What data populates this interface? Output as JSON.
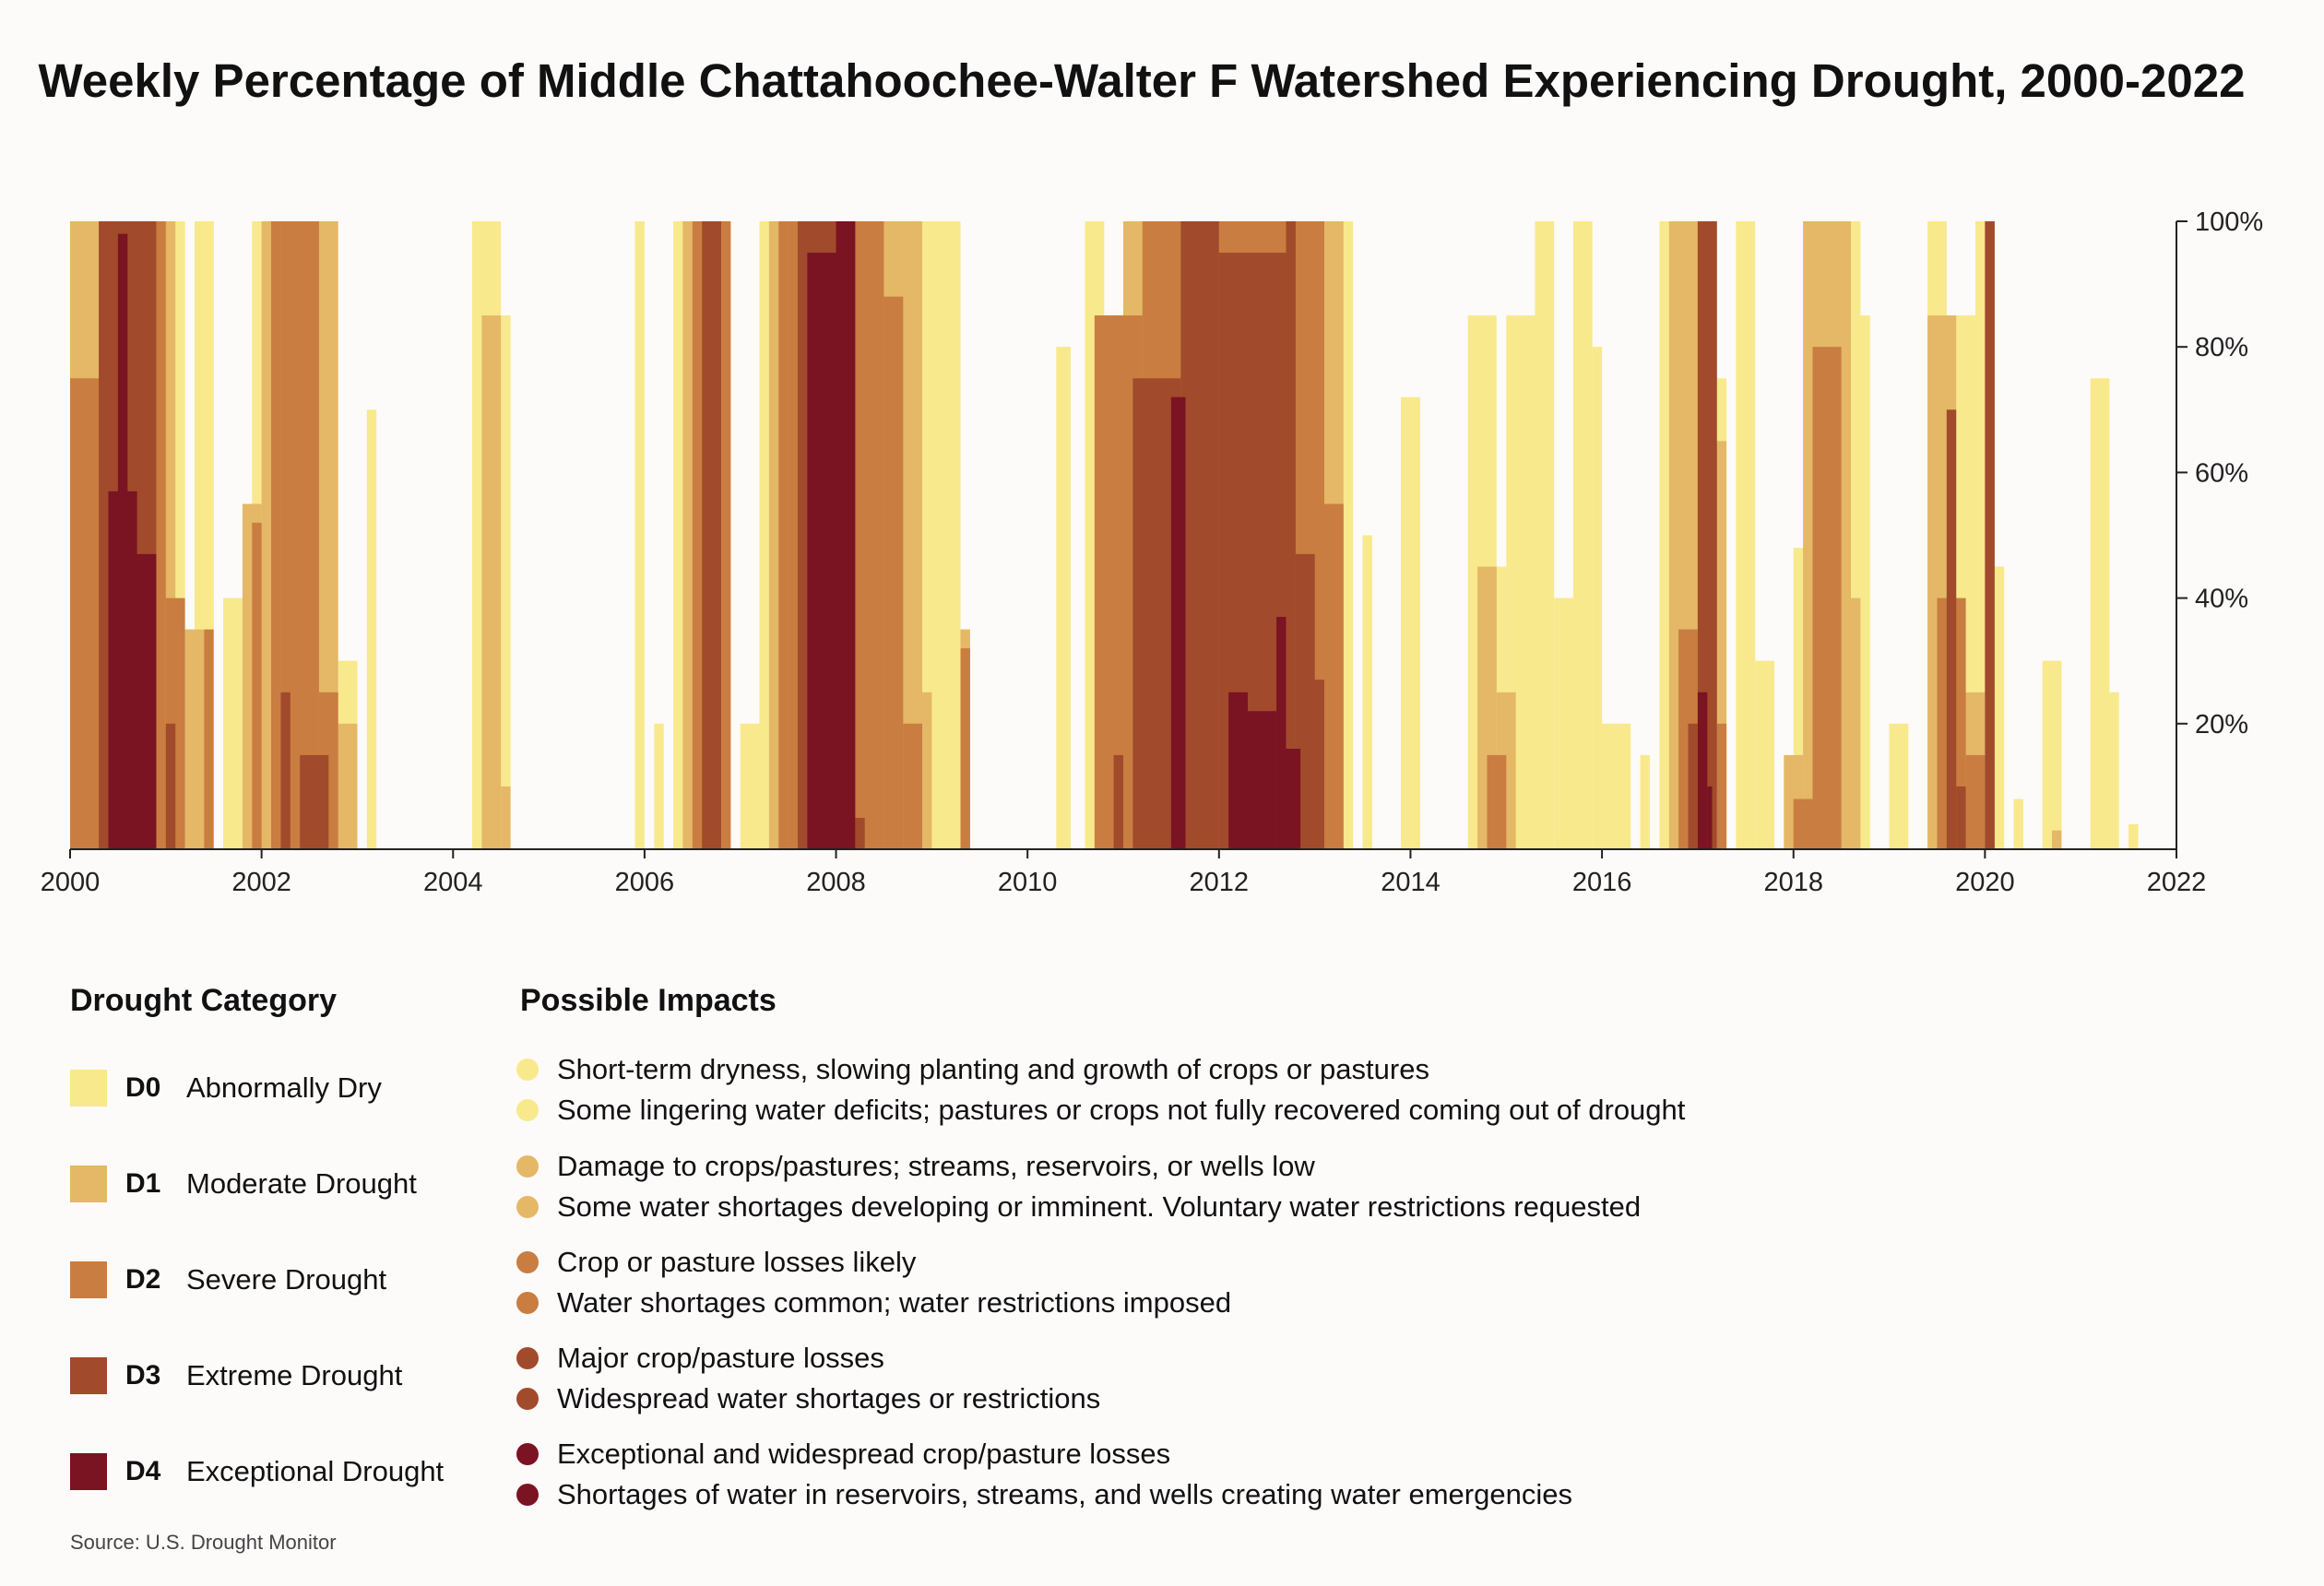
{
  "chart_data": {
    "type": "area",
    "title": "Weekly Percentage of Middle Chattahoochee-Walter F Watershed Experiencing Drought, 2000-2022",
    "xlabel": "",
    "ylabel": "",
    "xlim": [
      2000,
      2022
    ],
    "ylim": [
      0,
      100
    ],
    "x_ticks": [
      "2000",
      "2002",
      "2004",
      "2006",
      "2008",
      "2010",
      "2012",
      "2014",
      "2016",
      "2018",
      "2020",
      "2022"
    ],
    "y_ticks": [
      "20%",
      "40%",
      "60%",
      "80%",
      "100%"
    ],
    "y_axis_side": "right",
    "categories": [
      "D0",
      "D1",
      "D2",
      "D3",
      "D4"
    ],
    "colors": {
      "D0": "#f8e98c",
      "D1": "#e4b866",
      "D2": "#c97d41",
      "D3": "#a14a2c",
      "D4": "#7a1322"
    },
    "series": [
      {
        "name": "D0",
        "segments": [
          [
            2000.0,
            2001.2,
            100
          ],
          [
            2001.3,
            2001.5,
            100
          ],
          [
            2001.6,
            2001.9,
            40
          ],
          [
            2001.9,
            2002.0,
            100
          ],
          [
            2002.8,
            2003.0,
            30
          ],
          [
            2003.1,
            2003.2,
            70
          ],
          [
            2004.2,
            2004.5,
            100
          ],
          [
            2004.5,
            2004.6,
            85
          ],
          [
            2005.9,
            2006.0,
            100
          ],
          [
            2006.1,
            2006.2,
            20
          ],
          [
            2006.3,
            2006.5,
            100
          ],
          [
            2006.5,
            2006.6,
            100
          ],
          [
            2006.7,
            2006.9,
            100
          ],
          [
            2007.0,
            2007.2,
            20
          ],
          [
            2007.2,
            2007.4,
            100
          ],
          [
            2007.4,
            2007.6,
            100
          ],
          [
            2008.8,
            2009.0,
            100
          ],
          [
            2009.0,
            2009.3,
            100
          ],
          [
            2010.3,
            2010.45,
            80
          ],
          [
            2010.6,
            2010.8,
            100
          ],
          [
            2011.0,
            2011.1,
            100
          ],
          [
            2013.2,
            2013.4,
            100
          ],
          [
            2013.5,
            2013.6,
            50
          ],
          [
            2013.9,
            2014.1,
            72
          ],
          [
            2014.6,
            2014.9,
            85
          ],
          [
            2014.9,
            2015.0,
            45
          ],
          [
            2015.0,
            2015.3,
            85
          ],
          [
            2015.3,
            2015.5,
            100
          ],
          [
            2015.5,
            2015.7,
            40
          ],
          [
            2015.7,
            2015.9,
            100
          ],
          [
            2015.9,
            2016.0,
            80
          ],
          [
            2016.0,
            2016.3,
            20
          ],
          [
            2016.4,
            2016.5,
            15
          ],
          [
            2016.6,
            2017.0,
            100
          ],
          [
            2017.2,
            2017.3,
            75
          ],
          [
            2017.4,
            2017.6,
            100
          ],
          [
            2017.6,
            2017.8,
            30
          ],
          [
            2018.0,
            2018.3,
            48
          ],
          [
            2018.3,
            2018.7,
            100
          ],
          [
            2018.7,
            2018.8,
            85
          ],
          [
            2019.0,
            2019.2,
            20
          ],
          [
            2019.4,
            2019.6,
            100
          ],
          [
            2019.6,
            2019.9,
            85
          ],
          [
            2019.9,
            2020.0,
            100
          ],
          [
            2020.0,
            2020.2,
            45
          ],
          [
            2020.3,
            2020.4,
            8
          ],
          [
            2020.6,
            2020.8,
            30
          ],
          [
            2021.1,
            2021.3,
            75
          ],
          [
            2021.3,
            2021.4,
            25
          ],
          [
            2021.5,
            2021.6,
            4
          ]
        ]
      },
      {
        "name": "D1",
        "segments": [
          [
            2000.0,
            2001.1,
            100
          ],
          [
            2001.2,
            2001.4,
            35
          ],
          [
            2001.8,
            2002.0,
            55
          ],
          [
            2002.0,
            2002.8,
            100
          ],
          [
            2002.8,
            2003.0,
            20
          ],
          [
            2004.3,
            2004.5,
            85
          ],
          [
            2004.5,
            2004.6,
            10
          ],
          [
            2006.4,
            2006.9,
            100
          ],
          [
            2007.3,
            2007.5,
            100
          ],
          [
            2008.1,
            2008.9,
            100
          ],
          [
            2008.9,
            2009.0,
            25
          ],
          [
            2009.3,
            2009.4,
            35
          ],
          [
            2010.7,
            2011.0,
            85
          ],
          [
            2011.0,
            2013.3,
            100
          ],
          [
            2014.7,
            2014.9,
            45
          ],
          [
            2014.9,
            2015.1,
            25
          ],
          [
            2016.7,
            2017.1,
            100
          ],
          [
            2017.1,
            2017.3,
            65
          ],
          [
            2017.9,
            2018.1,
            15
          ],
          [
            2018.1,
            2018.6,
            100
          ],
          [
            2018.6,
            2018.7,
            40
          ],
          [
            2019.4,
            2019.7,
            85
          ],
          [
            2019.7,
            2020.0,
            25
          ],
          [
            2020.0,
            2020.1,
            100
          ],
          [
            2020.7,
            2020.8,
            3
          ]
        ]
      },
      {
        "name": "D2",
        "segments": [
          [
            2000.0,
            2000.5,
            75
          ],
          [
            2000.5,
            2001.0,
            100
          ],
          [
            2001.0,
            2001.2,
            40
          ],
          [
            2001.4,
            2001.5,
            35
          ],
          [
            2001.9,
            2002.0,
            52
          ],
          [
            2002.1,
            2002.2,
            100
          ],
          [
            2002.2,
            2002.6,
            100
          ],
          [
            2002.6,
            2002.8,
            25
          ],
          [
            2006.5,
            2006.9,
            100
          ],
          [
            2007.4,
            2007.5,
            100
          ],
          [
            2007.5,
            2008.0,
            100
          ],
          [
            2008.0,
            2008.5,
            100
          ],
          [
            2008.5,
            2008.7,
            88
          ],
          [
            2008.7,
            2008.9,
            20
          ],
          [
            2009.3,
            2009.4,
            32
          ],
          [
            2010.7,
            2011.0,
            85
          ],
          [
            2011.0,
            2011.2,
            85
          ],
          [
            2011.2,
            2011.6,
            100
          ],
          [
            2011.6,
            2012.0,
            100
          ],
          [
            2012.0,
            2012.7,
            100
          ],
          [
            2012.7,
            2013.1,
            100
          ],
          [
            2013.1,
            2013.3,
            55
          ],
          [
            2014.8,
            2015.0,
            15
          ],
          [
            2016.8,
            2017.0,
            35
          ],
          [
            2017.0,
            2017.2,
            100
          ],
          [
            2017.2,
            2017.3,
            20
          ],
          [
            2018.0,
            2018.2,
            8
          ],
          [
            2018.2,
            2018.5,
            80
          ],
          [
            2019.5,
            2019.8,
            40
          ],
          [
            2019.8,
            2020.0,
            15
          ],
          [
            2020.0,
            2020.1,
            100
          ]
        ]
      },
      {
        "name": "D3",
        "segments": [
          [
            2000.3,
            2000.9,
            100
          ],
          [
            2001.0,
            2001.1,
            20
          ],
          [
            2002.2,
            2002.3,
            25
          ],
          [
            2002.4,
            2002.7,
            15
          ],
          [
            2006.6,
            2006.8,
            100
          ],
          [
            2007.6,
            2008.2,
            100
          ],
          [
            2008.2,
            2008.3,
            5
          ],
          [
            2010.9,
            2011.0,
            15
          ],
          [
            2011.1,
            2011.6,
            75
          ],
          [
            2011.6,
            2012.0,
            100
          ],
          [
            2012.0,
            2012.7,
            95
          ],
          [
            2012.7,
            2012.8,
            100
          ],
          [
            2012.8,
            2013.0,
            47
          ],
          [
            2013.0,
            2013.1,
            27
          ],
          [
            2016.9,
            2017.0,
            20
          ],
          [
            2017.0,
            2017.2,
            100
          ],
          [
            2019.6,
            2019.7,
            70
          ],
          [
            2019.7,
            2019.8,
            10
          ],
          [
            2020.0,
            2020.1,
            100
          ]
        ]
      },
      {
        "name": "D4",
        "segments": [
          [
            2000.4,
            2000.7,
            57
          ],
          [
            2000.5,
            2000.6,
            98
          ],
          [
            2000.6,
            2000.9,
            47
          ],
          [
            2007.7,
            2008.1,
            95
          ],
          [
            2008.0,
            2008.2,
            100
          ],
          [
            2011.5,
            2011.65,
            72
          ],
          [
            2012.1,
            2012.3,
            25
          ],
          [
            2012.3,
            2012.6,
            22
          ],
          [
            2012.6,
            2012.7,
            37
          ],
          [
            2012.7,
            2012.85,
            16
          ],
          [
            2017.0,
            2017.1,
            25
          ],
          [
            2017.1,
            2017.15,
            10
          ]
        ]
      }
    ]
  },
  "legend": {
    "category_heading": "Drought Category",
    "impacts_heading": "Possible Impacts",
    "categories": [
      {
        "code": "D0",
        "name": "Abnormally Dry",
        "color": "#f8e98c",
        "impacts": [
          "Short-term dryness, slowing planting and growth of crops or pastures",
          "Some lingering water deficits; pastures or crops not fully recovered coming out of drought"
        ]
      },
      {
        "code": "D1",
        "name": "Moderate Drought",
        "color": "#e4b866",
        "impacts": [
          "Damage to crops/pastures; streams, reservoirs, or wells low",
          "Some water shortages developing or imminent. Voluntary water restrictions requested"
        ]
      },
      {
        "code": "D2",
        "name": "Severe Drought",
        "color": "#c97d41",
        "impacts": [
          "Crop or pasture losses likely",
          "Water shortages common; water restrictions imposed"
        ]
      },
      {
        "code": "D3",
        "name": "Extreme Drought",
        "color": "#a14a2c",
        "impacts": [
          "Major crop/pasture losses",
          "Widespread water shortages or restrictions"
        ]
      },
      {
        "code": "D4",
        "name": "Exceptional Drought",
        "color": "#7a1322",
        "impacts": [
          "Exceptional and widespread crop/pasture losses",
          "Shortages of water in reservoirs, streams, and wells creating water emergencies"
        ]
      }
    ]
  },
  "source": "Source: U.S. Drought Monitor"
}
